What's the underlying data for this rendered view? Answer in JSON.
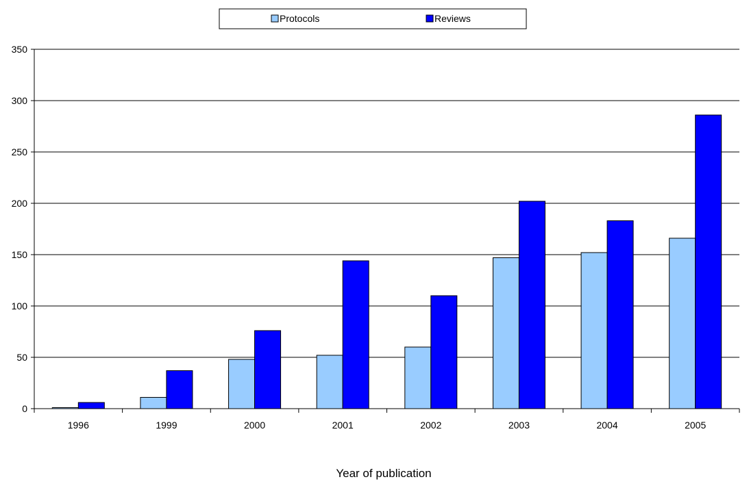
{
  "chart_data": {
    "type": "bar",
    "title": "",
    "xlabel": "Year of publication",
    "ylabel": "",
    "categories": [
      "1996",
      "1999",
      "2000",
      "2001",
      "2002",
      "2003",
      "2004",
      "2005"
    ],
    "series": [
      {
        "name": "Protocols",
        "values": [
          1,
          11,
          48,
          52,
          60,
          147,
          152,
          166
        ],
        "color": "#99CCFF"
      },
      {
        "name": "Reviews",
        "values": [
          6,
          37,
          76,
          144,
          110,
          202,
          183,
          286
        ],
        "color": "#0000FF"
      }
    ],
    "ylim": [
      0,
      350
    ],
    "yticks": [
      "0",
      "50",
      "100",
      "150",
      "200",
      "250",
      "300",
      "350"
    ],
    "grid": true,
    "legend_position": "top-center"
  }
}
